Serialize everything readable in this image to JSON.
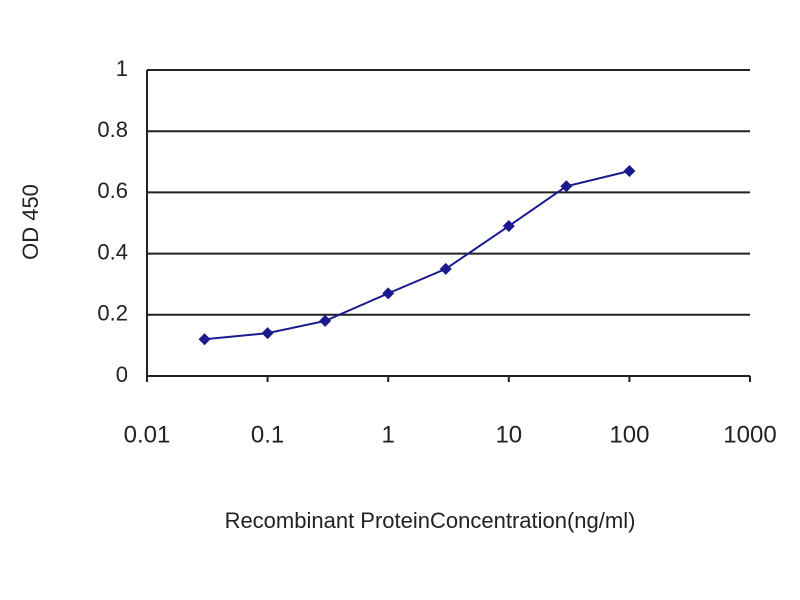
{
  "chart_data": {
    "type": "line",
    "x_label": "Recombinant ProteinConcentration(ng/ml)",
    "y_label": "OD 450",
    "x": [
      0.03,
      0.1,
      0.3,
      1,
      3,
      10,
      30,
      100
    ],
    "values": [
      0.12,
      0.14,
      0.18,
      0.27,
      0.35,
      0.49,
      0.62,
      0.67
    ],
    "color": "#1a1a8c",
    "x_log": true,
    "xlim": [
      0.01,
      1000
    ],
    "xticks": [
      0.01,
      0.1,
      1,
      10,
      100,
      1000
    ],
    "ylim": [
      0,
      1
    ],
    "yticks": [
      0,
      0.2,
      0.4,
      0.6,
      0.8,
      1
    ],
    "grid": true
  }
}
